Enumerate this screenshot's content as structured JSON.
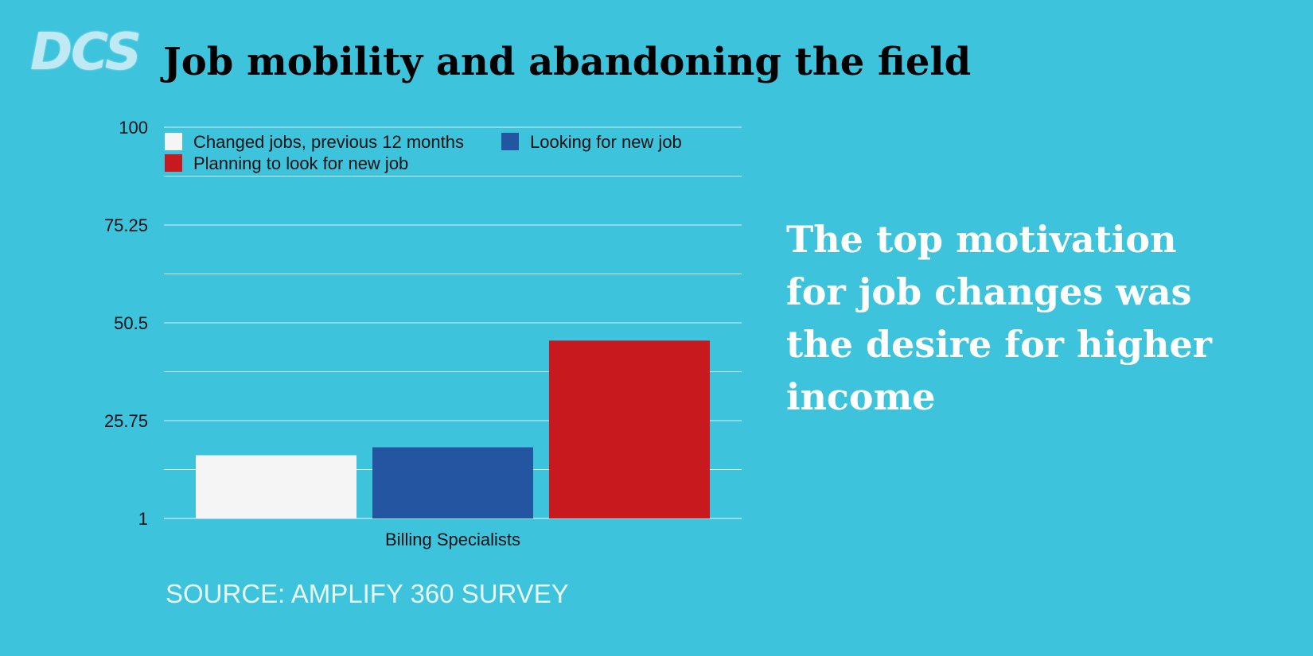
{
  "logo_text": "DCS",
  "title": "Job mobility and abandoning the field",
  "callout": "The top motivation for job changes was the desire for higher income",
  "source": "SOURCE: AMPLIFY 360 SURVEY",
  "chart_data": {
    "type": "bar",
    "categories": [
      "Billing Specialists"
    ],
    "series": [
      {
        "name": "Changed jobs, previous 12 months",
        "values": [
          17
        ],
        "color": "#f5f5f5"
      },
      {
        "name": "Looking for new job",
        "values": [
          19
        ],
        "color": "#2455a0"
      },
      {
        "name": "Planning to look for new job",
        "values": [
          46
        ],
        "color": "#c8191f"
      }
    ],
    "yticks": [
      "1",
      "25.75",
      "50.5",
      "75.25",
      "100"
    ],
    "ylim": [
      1,
      100
    ],
    "grid": true,
    "legend": "top"
  }
}
